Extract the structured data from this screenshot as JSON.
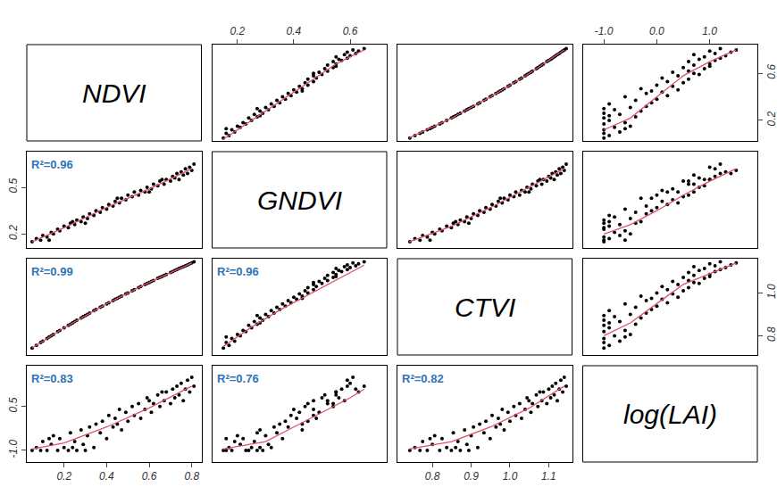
{
  "chart_data": {
    "type": "scatter_matrix",
    "marker": "circle",
    "color": "#000000",
    "variables": [
      {
        "name": "NDVI",
        "xlim": [
          0.025,
          0.845
        ],
        "ylim": [
          0.025,
          0.845
        ],
        "xticks": [
          0.2,
          0.4,
          0.6,
          0.8
        ],
        "yticks": [
          0.2,
          0.6
        ],
        "values": [
          0.05,
          0.07,
          0.09,
          0.1,
          0.12,
          0.14,
          0.15,
          0.17,
          0.18,
          0.2,
          0.22,
          0.23,
          0.25,
          0.26,
          0.28,
          0.29,
          0.31,
          0.32,
          0.34,
          0.35,
          0.37,
          0.38,
          0.4,
          0.41,
          0.43,
          0.44,
          0.46,
          0.47,
          0.49,
          0.5,
          0.52,
          0.53,
          0.55,
          0.56,
          0.58,
          0.59,
          0.61,
          0.62,
          0.64,
          0.65,
          0.67,
          0.68,
          0.7,
          0.71,
          0.72,
          0.73,
          0.74,
          0.75,
          0.76,
          0.77,
          0.78,
          0.79,
          0.8,
          0.81,
          0.3,
          0.45,
          0.6,
          0.24,
          0.66,
          0.13
        ]
      },
      {
        "name": "GNDVI",
        "xlim": [
          0.11,
          0.73
        ],
        "ylim": [
          0.11,
          0.73
        ],
        "xticks": [
          0.2,
          0.4,
          0.6
        ],
        "yticks": [
          0.2,
          0.5
        ],
        "values": [
          0.15,
          0.17,
          0.16,
          0.19,
          0.18,
          0.21,
          0.2,
          0.23,
          0.22,
          0.25,
          0.24,
          0.27,
          0.26,
          0.29,
          0.28,
          0.31,
          0.3,
          0.33,
          0.32,
          0.35,
          0.34,
          0.37,
          0.36,
          0.39,
          0.38,
          0.41,
          0.4,
          0.43,
          0.42,
          0.45,
          0.44,
          0.47,
          0.45,
          0.48,
          0.47,
          0.5,
          0.49,
          0.52,
          0.51,
          0.54,
          0.52,
          0.55,
          0.54,
          0.57,
          0.56,
          0.59,
          0.55,
          0.6,
          0.58,
          0.62,
          0.59,
          0.63,
          0.61,
          0.65,
          0.27,
          0.43,
          0.47,
          0.28,
          0.55,
          0.16
        ]
      },
      {
        "name": "CTVI",
        "xlim": [
          0.71,
          1.16
        ],
        "ylim": [
          0.71,
          1.16
        ],
        "xticks": [
          0.8,
          0.9,
          {
            "value": 1,
            "label": "1.0"
          },
          1.1
        ],
        "yticks": [
          0.8,
          {
            "value": 1,
            "label": "1.0"
          }
        ],
        "values": [
          0.742,
          0.755,
          0.768,
          0.775,
          0.787,
          0.8,
          0.806,
          0.819,
          0.825,
          0.837,
          0.849,
          0.854,
          0.866,
          0.872,
          0.883,
          0.889,
          0.9,
          0.906,
          0.917,
          0.922,
          0.933,
          0.938,
          0.949,
          0.954,
          0.964,
          0.97,
          0.98,
          0.985,
          0.995,
          1.0,
          1.01,
          1.015,
          1.025,
          1.03,
          1.039,
          1.044,
          1.054,
          1.058,
          1.068,
          1.072,
          1.082,
          1.086,
          1.095,
          1.1,
          1.105,
          1.109,
          1.114,
          1.118,
          1.122,
          1.127,
          1.131,
          1.136,
          1.14,
          1.145,
          0.894,
          0.975,
          1.049,
          0.86,
          1.077,
          0.794
        ]
      },
      {
        "name": "log(LAI)",
        "xlim": [
          -1.4,
          1.9
        ],
        "ylim": [
          -1.4,
          1.9
        ],
        "xticks": [
          {
            "value": -1,
            "label": "-1.0"
          },
          {
            "value": 0,
            "label": "0.0"
          },
          {
            "value": 1,
            "label": "1.0"
          }
        ],
        "yticks": [
          {
            "value": -1,
            "label": "-1.0"
          },
          0.5
        ],
        "values": [
          -1.0,
          -0.9,
          -1.0,
          -0.7,
          -1.0,
          -0.8,
          -0.5,
          -1.0,
          -0.6,
          -0.9,
          -1.0,
          -0.4,
          -0.7,
          -1.0,
          -0.3,
          -0.8,
          -0.5,
          -0.2,
          -0.9,
          -0.1,
          -0.4,
          0.0,
          -0.6,
          0.2,
          -0.2,
          0.1,
          0.4,
          -0.3,
          0.3,
          0.0,
          0.5,
          0.2,
          0.6,
          0.1,
          0.4,
          0.8,
          0.3,
          0.6,
          0.9,
          0.5,
          0.7,
          1.0,
          0.6,
          1.1,
          0.8,
          1.2,
          0.9,
          1.3,
          0.7,
          1.1,
          1.4,
          1.0,
          1.5,
          1.2,
          -1.0,
          -0.1,
          0.7,
          -0.9,
          1.0,
          -0.6
        ]
      }
    ],
    "smooth": {
      "color": "#df536b",
      "line_style": "solid",
      "series": [
        {
          "x": "GNDVI",
          "y": "NDVI",
          "x_values": [
            0.15,
            0.25,
            0.35,
            0.45,
            0.55,
            0.65
          ],
          "y_values": [
            0.04,
            0.2,
            0.36,
            0.52,
            0.68,
            0.8
          ]
        },
        {
          "x": "CTVI",
          "y": "NDVI",
          "x_values": [
            0.74,
            0.85,
            0.95,
            1.05,
            1.14
          ],
          "y_values": [
            0.05,
            0.22,
            0.4,
            0.6,
            0.8
          ]
        },
        {
          "x": "log(LAI)",
          "y": "NDVI",
          "x_values": [
            -1.0,
            -0.5,
            0.0,
            0.5,
            1.0,
            1.5
          ],
          "y_values": [
            0.12,
            0.22,
            0.4,
            0.58,
            0.7,
            0.8
          ]
        },
        {
          "x": "NDVI",
          "y": "GNDVI",
          "x_values": [
            0.05,
            0.2,
            0.4,
            0.6,
            0.8
          ],
          "y_values": [
            0.15,
            0.24,
            0.37,
            0.49,
            0.62
          ]
        },
        {
          "x": "CTVI",
          "y": "GNDVI",
          "x_values": [
            0.74,
            0.85,
            0.95,
            1.05,
            1.14
          ],
          "y_values": [
            0.15,
            0.25,
            0.37,
            0.5,
            0.62
          ]
        },
        {
          "x": "log(LAI)",
          "y": "GNDVI",
          "x_values": [
            -1.0,
            -0.5,
            0.0,
            0.5,
            1.0,
            1.5
          ],
          "y_values": [
            0.2,
            0.26,
            0.35,
            0.45,
            0.54,
            0.62
          ]
        },
        {
          "x": "NDVI",
          "y": "CTVI",
          "x_values": [
            0.05,
            0.2,
            0.4,
            0.6,
            0.8
          ],
          "y_values": [
            0.742,
            0.837,
            0.949,
            1.049,
            1.14
          ]
        },
        {
          "x": "GNDVI",
          "y": "CTVI",
          "x_values": [
            0.15,
            0.25,
            0.35,
            0.45,
            0.55,
            0.65
          ],
          "y_values": [
            0.75,
            0.84,
            0.92,
            0.99,
            1.06,
            1.13
          ]
        },
        {
          "x": "log(LAI)",
          "y": "CTVI",
          "x_values": [
            -1.0,
            -0.5,
            0.0,
            0.5,
            1.0,
            1.5
          ],
          "y_values": [
            0.8,
            0.86,
            0.95,
            1.04,
            1.09,
            1.14
          ]
        },
        {
          "x": "NDVI",
          "y": "log(LAI)",
          "x_values": [
            0.05,
            0.2,
            0.4,
            0.6,
            0.8
          ],
          "y_values": [
            -0.95,
            -0.75,
            -0.2,
            0.45,
            1.2
          ]
        },
        {
          "x": "GNDVI",
          "y": "log(LAI)",
          "x_values": [
            0.15,
            0.3,
            0.4,
            0.5,
            0.6,
            0.65
          ],
          "y_values": [
            -0.95,
            -0.7,
            -0.2,
            0.3,
            0.8,
            1.1
          ]
        },
        {
          "x": "CTVI",
          "y": "log(LAI)",
          "x_values": [
            0.74,
            0.85,
            0.95,
            1.05,
            1.14
          ],
          "y_values": [
            -0.95,
            -0.7,
            -0.2,
            0.45,
            1.2
          ]
        }
      ]
    },
    "annotations": [
      {
        "x": "NDVI",
        "y": "GNDVI",
        "text": "R²=0.96",
        "color": "#2e75b6"
      },
      {
        "x": "NDVI",
        "y": "CTVI",
        "text": "R²=0.99",
        "color": "#2e75b6"
      },
      {
        "x": "GNDVI",
        "y": "CTVI",
        "text": "R²=0.96",
        "color": "#2e75b6"
      },
      {
        "x": "NDVI",
        "y": "log(LAI)",
        "text": "R²=0.83",
        "color": "#2e75b6"
      },
      {
        "x": "GNDVI",
        "y": "log(LAI)",
        "text": "R²=0.76",
        "color": "#2e75b6"
      },
      {
        "x": "CTVI",
        "y": "log(LAI)",
        "text": "R²=0.82",
        "color": "#2e75b6"
      }
    ]
  }
}
